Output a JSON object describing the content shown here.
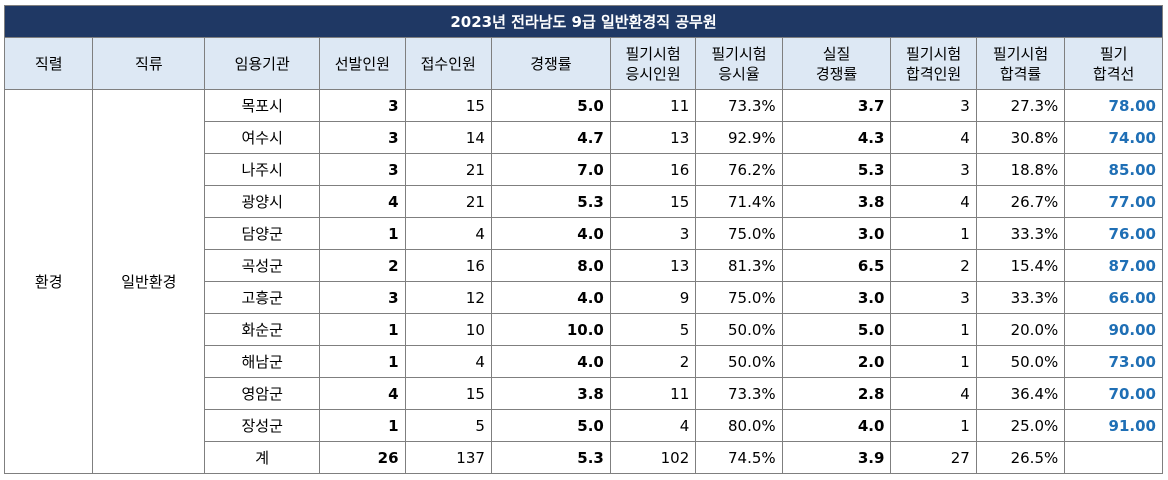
{
  "title": "2023년 전라남도 9급 일반환경직 공무원",
  "colors": {
    "title_bg": "#1f3864",
    "header_bg": "#dde8f4",
    "pass_score": "#1f6fb5",
    "border": "#7f7f7f"
  },
  "headers": [
    [
      "직렬"
    ],
    [
      "직류"
    ],
    [
      "임용기관"
    ],
    [
      "선발인원"
    ],
    [
      "접수인원"
    ],
    [
      "경쟁률"
    ],
    [
      "필기시험",
      "응시인원"
    ],
    [
      "필기시험",
      "응시율"
    ],
    [
      "실질",
      "경쟁률"
    ],
    [
      "필기시험",
      "합격인원"
    ],
    [
      "필기시험",
      "합격률"
    ],
    [
      "필기",
      "합격선"
    ]
  ],
  "series": "환경",
  "category": "일반환경",
  "rows": [
    {
      "agency": "목포시",
      "selected": "3",
      "applied": "15",
      "ratio": "5.0",
      "taken": "11",
      "take_rate": "73.3%",
      "real_ratio": "3.7",
      "passed": "3",
      "pass_rate": "27.3%",
      "cutoff": "78.00"
    },
    {
      "agency": "여수시",
      "selected": "3",
      "applied": "14",
      "ratio": "4.7",
      "taken": "13",
      "take_rate": "92.9%",
      "real_ratio": "4.3",
      "passed": "4",
      "pass_rate": "30.8%",
      "cutoff": "74.00"
    },
    {
      "agency": "나주시",
      "selected": "3",
      "applied": "21",
      "ratio": "7.0",
      "taken": "16",
      "take_rate": "76.2%",
      "real_ratio": "5.3",
      "passed": "3",
      "pass_rate": "18.8%",
      "cutoff": "85.00"
    },
    {
      "agency": "광양시",
      "selected": "4",
      "applied": "21",
      "ratio": "5.3",
      "taken": "15",
      "take_rate": "71.4%",
      "real_ratio": "3.8",
      "passed": "4",
      "pass_rate": "26.7%",
      "cutoff": "77.00"
    },
    {
      "agency": "담양군",
      "selected": "1",
      "applied": "4",
      "ratio": "4.0",
      "taken": "3",
      "take_rate": "75.0%",
      "real_ratio": "3.0",
      "passed": "1",
      "pass_rate": "33.3%",
      "cutoff": "76.00"
    },
    {
      "agency": "곡성군",
      "selected": "2",
      "applied": "16",
      "ratio": "8.0",
      "taken": "13",
      "take_rate": "81.3%",
      "real_ratio": "6.5",
      "passed": "2",
      "pass_rate": "15.4%",
      "cutoff": "87.00"
    },
    {
      "agency": "고흥군",
      "selected": "3",
      "applied": "12",
      "ratio": "4.0",
      "taken": "9",
      "take_rate": "75.0%",
      "real_ratio": "3.0",
      "passed": "3",
      "pass_rate": "33.3%",
      "cutoff": "66.00"
    },
    {
      "agency": "화순군",
      "selected": "1",
      "applied": "10",
      "ratio": "10.0",
      "taken": "5",
      "take_rate": "50.0%",
      "real_ratio": "5.0",
      "passed": "1",
      "pass_rate": "20.0%",
      "cutoff": "90.00"
    },
    {
      "agency": "해남군",
      "selected": "1",
      "applied": "4",
      "ratio": "4.0",
      "taken": "2",
      "take_rate": "50.0%",
      "real_ratio": "2.0",
      "passed": "1",
      "pass_rate": "50.0%",
      "cutoff": "73.00"
    },
    {
      "agency": "영암군",
      "selected": "4",
      "applied": "15",
      "ratio": "3.8",
      "taken": "11",
      "take_rate": "73.3%",
      "real_ratio": "2.8",
      "passed": "4",
      "pass_rate": "36.4%",
      "cutoff": "70.00"
    },
    {
      "agency": "장성군",
      "selected": "1",
      "applied": "5",
      "ratio": "5.0",
      "taken": "4",
      "take_rate": "80.0%",
      "real_ratio": "4.0",
      "passed": "1",
      "pass_rate": "25.0%",
      "cutoff": "91.00"
    }
  ],
  "total": {
    "label": "계",
    "selected": "26",
    "applied": "137",
    "ratio": "5.3",
    "taken": "102",
    "take_rate": "74.5%",
    "real_ratio": "3.9",
    "passed": "27",
    "pass_rate": "26.5%",
    "cutoff": ""
  }
}
